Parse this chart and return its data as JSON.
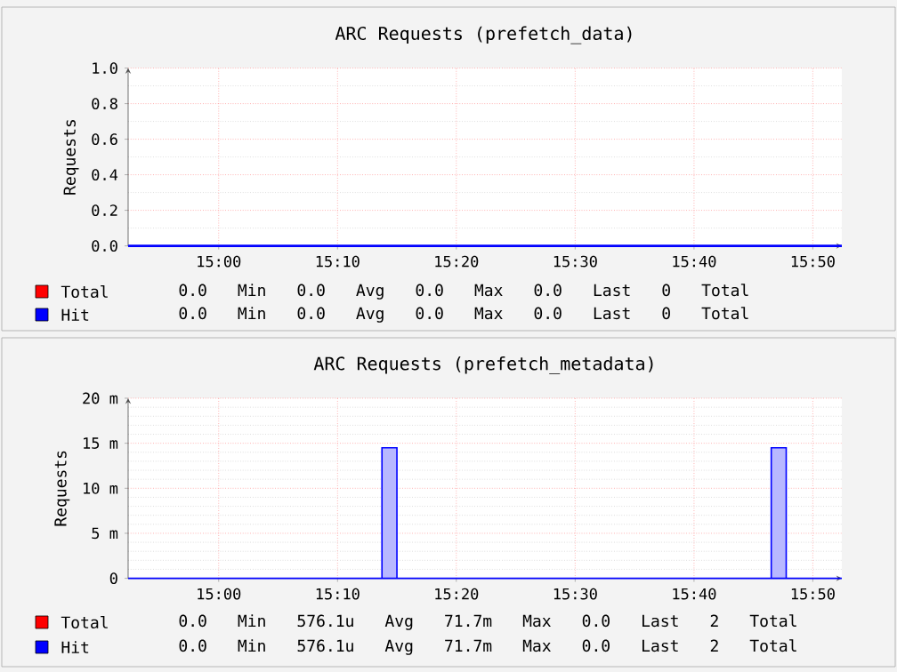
{
  "chart_data": [
    {
      "type": "step",
      "title": "ARC Requests (prefetch_data)",
      "ylabel": "Requests",
      "xlim": [
        14.873,
        15.874
      ],
      "xticks": [
        {
          "value": 15.0,
          "label": "15:00"
        },
        {
          "value": 15.1667,
          "label": "15:10"
        },
        {
          "value": 15.3333,
          "label": "15:20"
        },
        {
          "value": 15.5,
          "label": "15:30"
        },
        {
          "value": 15.6667,
          "label": "15:40"
        },
        {
          "value": 15.8333,
          "label": "15:50"
        }
      ],
      "ylim": [
        0,
        1
      ],
      "yticks": [
        {
          "value": 0,
          "label": "0.0"
        },
        {
          "value": 0.2,
          "label": "0.2"
        },
        {
          "value": 0.4,
          "label": "0.4"
        },
        {
          "value": 0.6,
          "label": "0.6"
        },
        {
          "value": 0.8,
          "label": "0.8"
        },
        {
          "value": 1,
          "label": "1.0"
        }
      ],
      "grid": true,
      "legend": "bottom",
      "series": [
        {
          "name": "Total",
          "color": "#ff0000",
          "values": [
            null,
            null
          ]
        },
        {
          "name": "Hit",
          "color": "#0000ff",
          "x": [
            14.873,
            15.874
          ],
          "values": [
            0,
            0
          ]
        }
      ],
      "annotations": [
        "0.0 Min 0.0 Avg 0.0 Max 0.0 Last 0 Total",
        "0.0 Min 0.0 Avg 0.0 Max 0.0 Last 0 Total"
      ]
    },
    {
      "type": "step",
      "title": "ARC Requests (prefetch_metadata)",
      "ylabel": "Requests",
      "xlim": [
        14.873,
        15.874
      ],
      "xticks": [
        {
          "value": 15.0,
          "label": "15:00"
        },
        {
          "value": 15.1667,
          "label": "15:10"
        },
        {
          "value": 15.3333,
          "label": "15:20"
        },
        {
          "value": 15.5,
          "label": "15:30"
        },
        {
          "value": 15.6667,
          "label": "15:40"
        },
        {
          "value": 15.8333,
          "label": "15:50"
        }
      ],
      "ylim": [
        0,
        20
      ],
      "yticks": [
        0,
        {
          "value": 5,
          "label": "5 m"
        },
        {
          "value": 10,
          "label": "10 m"
        },
        {
          "value": 15,
          "label": "15 m"
        },
        {
          "value": 20,
          "label": "20 m"
        }
      ],
      "grid": true,
      "legend": "bottom",
      "series": [
        {
          "name": "Total",
          "color": "#ff0000",
          "values": [
            null,
            null,
            null,
            null,
            null,
            null
          ]
        },
        {
          "name": "Hit",
          "type": "area",
          "color": "#0000ff",
          "x": [
            14.873,
            15.229,
            15.25,
            15.775,
            15.796,
            15.874
          ],
          "values": [
            0,
            14.5,
            0,
            14.5,
            0,
            0
          ]
        }
      ],
      "annotations": [
        "0.0 Min 576.1u Avg 71.7m Max 0.0 Last 2 Total",
        "0.0 Min 576.1u Avg 71.7m Max 0.0 Last 2 Total"
      ]
    }
  ]
}
